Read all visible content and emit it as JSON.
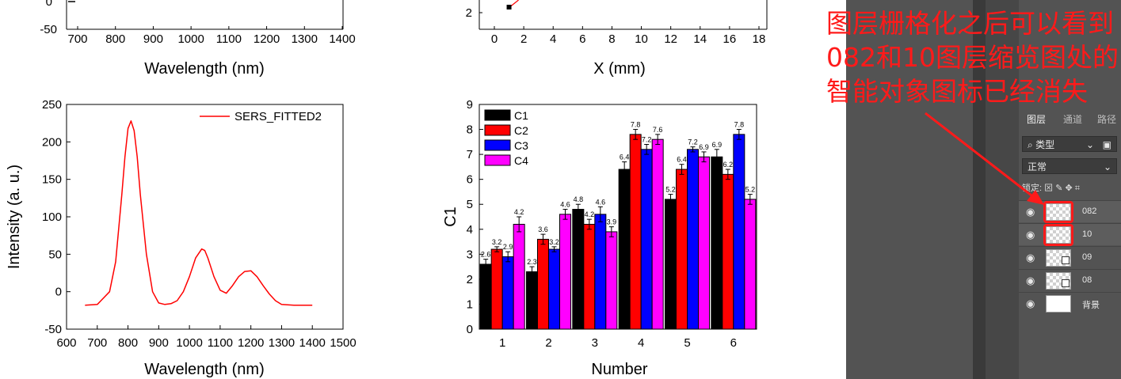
{
  "chart_data": [
    {
      "id": "top-left-partial",
      "type": "line",
      "xlabel": "Wavelength (nm)",
      "xticks": [
        700,
        800,
        900,
        1000,
        1100,
        1200,
        1300,
        1400
      ],
      "xlim": [
        660,
        1400
      ],
      "yticks_visible": [
        "0",
        "-50"
      ]
    },
    {
      "id": "top-middle-partial",
      "type": "scatter",
      "xlabel": "X (mm)",
      "xticks": [
        0,
        2,
        4,
        6,
        8,
        10,
        12,
        14,
        16,
        18
      ],
      "xlim": [
        -1,
        18
      ],
      "yticks_visible": [
        "2"
      ],
      "points": [
        {
          "x": 1,
          "y": 2.3
        }
      ]
    },
    {
      "id": "sers-line",
      "type": "line",
      "title": "",
      "xlabel": "Wavelength (nm)",
      "ylabel": "Intensity (a. u.)",
      "xlim": [
        600,
        1500
      ],
      "ylim": [
        -50,
        250
      ],
      "xticks": [
        600,
        700,
        800,
        900,
        1000,
        1100,
        1200,
        1300,
        1400,
        1500
      ],
      "yticks": [
        -50,
        0,
        50,
        100,
        150,
        200,
        250
      ],
      "color": "#ff0000",
      "legend": "SERS_FITTED2",
      "legend_position": "top-right",
      "series": [
        {
          "name": "SERS_FITTED2",
          "x": [
            660,
            700,
            740,
            760,
            780,
            790,
            800,
            810,
            820,
            830,
            840,
            860,
            880,
            900,
            920,
            940,
            960,
            980,
            1000,
            1020,
            1040,
            1050,
            1060,
            1080,
            1100,
            1120,
            1140,
            1160,
            1180,
            1200,
            1220,
            1240,
            1260,
            1280,
            1300,
            1340,
            1400
          ],
          "y": [
            -18,
            -17,
            0,
            40,
            130,
            180,
            218,
            228,
            215,
            180,
            130,
            50,
            0,
            -15,
            -17,
            -16,
            -12,
            0,
            20,
            45,
            57,
            55,
            45,
            20,
            2,
            -2,
            8,
            20,
            27,
            28,
            20,
            8,
            -3,
            -12,
            -17,
            -18,
            -18
          ]
        }
      ]
    },
    {
      "id": "grouped-bars",
      "type": "bar",
      "xlabel": "Number",
      "ylabel": "C1",
      "ylim": [
        0,
        9
      ],
      "yticks": [
        0,
        1,
        2,
        3,
        4,
        5,
        6,
        7,
        8,
        9
      ],
      "categories": [
        "1",
        "2",
        "3",
        "4",
        "5",
        "6"
      ],
      "legend_position": "top-left",
      "series": [
        {
          "name": "C1",
          "color": "#000000",
          "values": [
            2.6,
            2.3,
            4.8,
            6.4,
            5.2,
            6.9
          ],
          "errors": [
            0.2,
            0.2,
            0.2,
            0.3,
            0.2,
            0.3
          ]
        },
        {
          "name": "C2",
          "color": "#ff0000",
          "values": [
            3.2,
            3.6,
            4.2,
            7.8,
            6.4,
            6.2
          ],
          "errors": [
            0.1,
            0.2,
            0.2,
            0.2,
            0.2,
            0.2
          ]
        },
        {
          "name": "C3",
          "color": "#0000ff",
          "values": [
            2.9,
            3.2,
            4.6,
            7.2,
            7.2,
            7.8
          ],
          "errors": [
            0.2,
            0.1,
            0.3,
            0.2,
            0.1,
            0.2
          ]
        },
        {
          "name": "C4",
          "color": "#ff00ff",
          "values": [
            4.2,
            4.6,
            3.9,
            7.6,
            6.9,
            5.2
          ],
          "errors": [
            0.3,
            0.2,
            0.2,
            0.2,
            0.2,
            0.2
          ]
        }
      ],
      "value_labels": [
        [
          "2.6",
          "2.3",
          "4.8",
          "6.4",
          "5.2",
          "6.9"
        ],
        [
          "3.2",
          "3.6",
          "4.2",
          "7.8",
          "6.4",
          "6.2"
        ],
        [
          "2.9",
          "3.2",
          "4.6",
          "7.2",
          "7.2",
          "7.8"
        ],
        [
          "4.2",
          "4.6",
          "3.9",
          "7.6",
          "6.9",
          "5.2"
        ]
      ]
    }
  ],
  "annotation": {
    "lines": [
      "图层栅格化之后可以看到",
      "082和10图层缩览图处的",
      "智能对象图标已经消失"
    ],
    "color": "#ff1a1a"
  },
  "layers_panel": {
    "tabs": [
      "图层",
      "通道",
      "路径"
    ],
    "filter_label": "类型",
    "blend_mode": "正常",
    "lock_label": "锁定:",
    "layers": [
      {
        "name": "082",
        "highlighted": true,
        "smart_object": false
      },
      {
        "name": "10",
        "highlighted": true,
        "smart_object": false
      },
      {
        "name": "09",
        "highlighted": false,
        "smart_object": true
      },
      {
        "name": "08",
        "highlighted": false,
        "smart_object": true
      },
      {
        "name": "背景",
        "highlighted": false,
        "smart_object": false
      }
    ]
  }
}
